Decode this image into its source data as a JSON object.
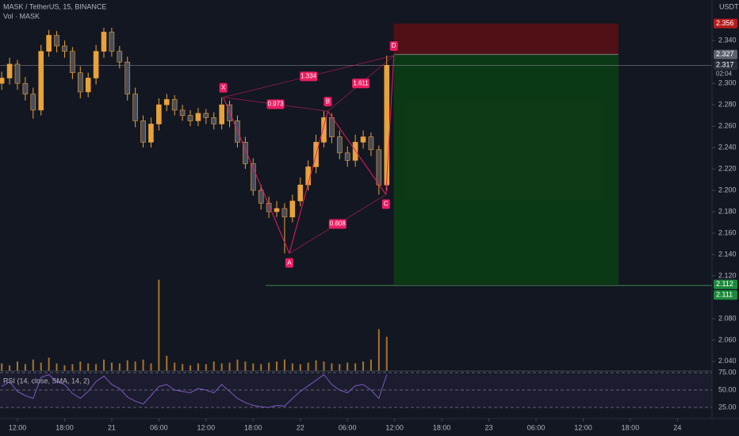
{
  "chart_data": {
    "type": "candlestick",
    "title": "MASK / TetherUS, 15, BINANCE",
    "volume_label": "Vol · MASK",
    "currency": "USDT",
    "up_color": "#e8a23a",
    "down_color": "#4a4e5a",
    "volume_color": "#a8742a",
    "x": [
      -2,
      -1,
      0,
      1,
      2,
      3,
      4,
      5,
      6,
      7,
      8,
      9,
      10,
      11,
      12,
      13,
      14,
      15,
      16,
      17,
      18,
      19,
      20,
      21,
      22,
      23,
      24,
      25,
      26,
      27,
      28,
      29,
      30,
      31,
      32,
      33,
      34,
      35,
      36,
      37,
      38,
      39,
      40,
      41,
      42,
      43,
      44,
      45,
      46,
      47
    ],
    "open": [
      2.3,
      2.305,
      2.318,
      2.3,
      2.29,
      2.275,
      2.33,
      2.345,
      2.335,
      2.33,
      2.31,
      2.292,
      2.305,
      2.33,
      2.348,
      2.33,
      2.32,
      2.29,
      2.265,
      2.245,
      2.262,
      2.28,
      2.285,
      2.275,
      2.27,
      2.265,
      2.272,
      2.268,
      2.262,
      2.28,
      2.265,
      2.245,
      2.225,
      2.2,
      2.188,
      2.18,
      2.183,
      2.175,
      2.19,
      2.205,
      2.222,
      2.245,
      2.268,
      2.25,
      2.235,
      2.228,
      2.245,
      2.25,
      2.238,
      2.205
    ],
    "high": [
      2.311,
      2.324,
      2.322,
      2.306,
      2.296,
      2.336,
      2.35,
      2.349,
      2.34,
      2.334,
      2.316,
      2.31,
      2.336,
      2.352,
      2.352,
      2.335,
      2.325,
      2.296,
      2.27,
      2.268,
      2.286,
      2.29,
      2.289,
      2.28,
      2.275,
      2.277,
      2.276,
      2.273,
      2.287,
      2.284,
      2.27,
      2.25,
      2.23,
      2.205,
      2.194,
      2.19,
      2.188,
      2.196,
      2.212,
      2.228,
      2.252,
      2.274,
      2.272,
      2.256,
      2.241,
      2.252,
      2.256,
      2.254,
      2.242,
      2.326
    ],
    "low": [
      2.294,
      2.299,
      2.294,
      2.284,
      2.267,
      2.27,
      2.325,
      2.329,
      2.324,
      2.304,
      2.286,
      2.287,
      2.299,
      2.324,
      2.325,
      2.314,
      2.284,
      2.259,
      2.24,
      2.24,
      2.256,
      2.274,
      2.27,
      2.265,
      2.26,
      2.26,
      2.262,
      2.257,
      2.257,
      2.259,
      2.24,
      2.22,
      2.195,
      2.182,
      2.174,
      2.175,
      2.141,
      2.17,
      2.185,
      2.2,
      2.216,
      2.24,
      2.244,
      2.229,
      2.222,
      2.222,
      2.239,
      2.232,
      2.196,
      2.2
    ],
    "close": [
      2.305,
      2.318,
      2.3,
      2.29,
      2.275,
      2.33,
      2.345,
      2.335,
      2.33,
      2.31,
      2.292,
      2.305,
      2.33,
      2.348,
      2.33,
      2.32,
      2.29,
      2.265,
      2.245,
      2.262,
      2.28,
      2.285,
      2.275,
      2.27,
      2.265,
      2.272,
      2.268,
      2.262,
      2.28,
      2.265,
      2.245,
      2.225,
      2.2,
      2.188,
      2.18,
      2.183,
      2.175,
      2.19,
      2.205,
      2.222,
      2.245,
      2.268,
      2.25,
      2.235,
      2.228,
      2.245,
      2.25,
      2.238,
      2.205,
      2.317
    ],
    "volume": [
      20,
      15,
      25,
      18,
      30,
      22,
      35,
      20,
      15,
      18,
      25,
      20,
      18,
      30,
      22,
      20,
      28,
      25,
      30,
      20,
      240,
      40,
      22,
      18,
      15,
      20,
      18,
      25,
      20,
      22,
      30,
      25,
      20,
      18,
      22,
      25,
      30,
      20,
      18,
      22,
      28,
      25,
      20,
      18,
      22,
      20,
      25,
      30,
      110,
      90
    ],
    "rsi_label": "RSI (14, close, SMA, 14, 2)",
    "rsi": [
      55,
      62,
      48,
      42,
      38,
      68,
      72,
      62,
      58,
      45,
      38,
      48,
      62,
      70,
      58,
      52,
      40,
      34,
      30,
      42,
      55,
      58,
      50,
      48,
      46,
      52,
      50,
      46,
      58,
      48,
      38,
      32,
      28,
      26,
      25,
      28,
      27,
      38,
      48,
      56,
      64,
      72,
      58,
      50,
      46,
      56,
      58,
      50,
      38,
      72
    ],
    "rsi_ticks": [
      {
        "value": 75,
        "label": "75.00"
      },
      {
        "value": 50,
        "label": "50.00"
      },
      {
        "value": 25,
        "label": "25.00"
      }
    ],
    "xlim": [
      -2.22,
      88.4
    ],
    "ylim": [
      2.031,
      2.378
    ],
    "rsi_lim": [
      21.4,
      81.8
    ],
    "yticks": [
      {
        "value": 2.04,
        "label": "2.040"
      },
      {
        "value": 2.06,
        "label": "2.060"
      },
      {
        "value": 2.08,
        "label": "2.080"
      },
      {
        "value": 2.12,
        "label": "2.120"
      },
      {
        "value": 2.14,
        "label": "2.140"
      },
      {
        "value": 2.16,
        "label": "2.160"
      },
      {
        "value": 2.18,
        "label": "2.180"
      },
      {
        "value": 2.2,
        "label": "2.200"
      },
      {
        "value": 2.22,
        "label": "2.220"
      },
      {
        "value": 2.24,
        "label": "2.240"
      },
      {
        "value": 2.26,
        "label": "2.260"
      },
      {
        "value": 2.28,
        "label": "2.280"
      },
      {
        "value": 2.3,
        "label": "2.300"
      },
      {
        "value": 2.34,
        "label": "2.340"
      }
    ],
    "xticks": [
      {
        "value": 0,
        "label": "12:00"
      },
      {
        "value": 6,
        "label": "18:00"
      },
      {
        "value": 12,
        "label": "21"
      },
      {
        "value": 18,
        "label": "06:00"
      },
      {
        "value": 24,
        "label": "12:00"
      },
      {
        "value": 30,
        "label": "18:00"
      },
      {
        "value": 36,
        "label": "22"
      },
      {
        "value": 42,
        "label": "06:00"
      },
      {
        "value": 48,
        "label": "12:00"
      },
      {
        "value": 54,
        "label": "18:00"
      },
      {
        "value": 60,
        "label": "23"
      },
      {
        "value": 66,
        "label": "06:00"
      },
      {
        "value": 72,
        "label": "12:00"
      },
      {
        "value": 78,
        "label": "18:00"
      },
      {
        "value": 84,
        "label": "24"
      }
    ],
    "pattern": {
      "labels": [
        "X",
        "A",
        "B",
        "C",
        "D"
      ],
      "x": [
        26.2,
        34.6,
        39.5,
        46.9,
        47.9
      ],
      "prices": [
        2.287,
        2.141,
        2.274,
        2.196,
        2.326
      ],
      "ratios": [
        0.973,
        0.608,
        1.611,
        1.334
      ]
    },
    "position": {
      "stop": 2.356,
      "entry": 2.327,
      "target": 2.112,
      "target_line": 2.111,
      "start": 47.9,
      "end": 76.5
    },
    "last_price": 2.317,
    "countdown": "02:04"
  }
}
